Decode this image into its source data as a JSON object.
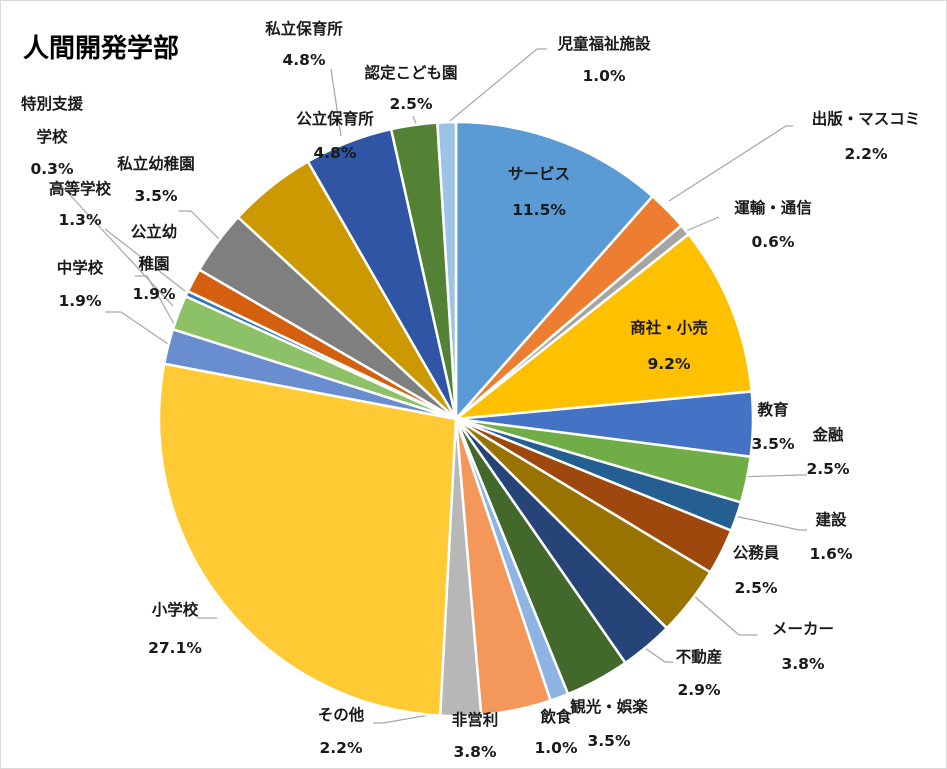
{
  "chart_data": {
    "type": "pie",
    "title": "人間開発学部",
    "start_angle_deg": 0,
    "direction": "clockwise",
    "slices": [
      {
        "name": "サービス",
        "value": 11.5,
        "label": "11.5%",
        "color": "#5B9BD5"
      },
      {
        "name": "出版・マスコミ",
        "value": 2.2,
        "label": "2.2%",
        "color": "#ED7D31"
      },
      {
        "name": "運輸・通信",
        "value": 0.6,
        "label": "0.6%",
        "color": "#A5A5A5"
      },
      {
        "name": "商社・小売",
        "value": 9.2,
        "label": "9.2%",
        "color": "#FFC000"
      },
      {
        "name": "教育",
        "value": 3.5,
        "label": "3.5%",
        "color": "#4472C4"
      },
      {
        "name": "金融",
        "value": 2.5,
        "label": "2.5%",
        "color": "#70AD47"
      },
      {
        "name": "建設",
        "value": 1.6,
        "label": "1.6%",
        "color": "#255E91"
      },
      {
        "name": "公務員",
        "value": 2.5,
        "label": "2.5%",
        "color": "#9E480E"
      },
      {
        "name": "メーカー",
        "value": 3.8,
        "label": "3.8%",
        "color": "#997300"
      },
      {
        "name": "不動産",
        "value": 2.9,
        "label": "2.9%",
        "color": "#264478"
      },
      {
        "name": "観光・娯楽",
        "value": 3.5,
        "label": "3.5%",
        "color": "#43682B"
      },
      {
        "name": "飲食",
        "value": 1.0,
        "label": "1.0%",
        "color": "#8DB4E2"
      },
      {
        "name": "非営利",
        "value": 3.8,
        "label": "3.8%",
        "color": "#F4975A"
      },
      {
        "name": "その他",
        "value": 2.2,
        "label": "2.2%",
        "color": "#B7B7B7"
      },
      {
        "name": "小学校",
        "value": 27.1,
        "label": "27.1%",
        "color": "#FFCA33"
      },
      {
        "name": "中学校",
        "value": 1.9,
        "label": "1.9%",
        "color": "#698ED0"
      },
      {
        "name": "公立幼稚園",
        "value": 1.9,
        "label": "1.9%",
        "color": "#8CC168"
      },
      {
        "name": "特別支援学校",
        "value": 0.3,
        "label": "0.3%",
        "color": "#2E75B6"
      },
      {
        "name": "高等学校",
        "value": 1.3,
        "label": "1.3%",
        "color": "#D35F0F"
      },
      {
        "name": "私立幼稚園",
        "value": 3.5,
        "label": "3.5%",
        "color": "#7F7F7F"
      },
      {
        "name": "私立保育所",
        "value": 4.8,
        "label": "4.8%",
        "color": "#CC9A00"
      },
      {
        "name": "公立保育所",
        "value": 4.8,
        "label": "4.8%",
        "color": "#2F55A4"
      },
      {
        "name": "認定こども園",
        "value": 2.5,
        "label": "2.5%",
        "color": "#548235"
      },
      {
        "name": "児童福祉施設",
        "value": 1.0,
        "label": "1.0%",
        "color": "#9DC3E6"
      }
    ]
  }
}
